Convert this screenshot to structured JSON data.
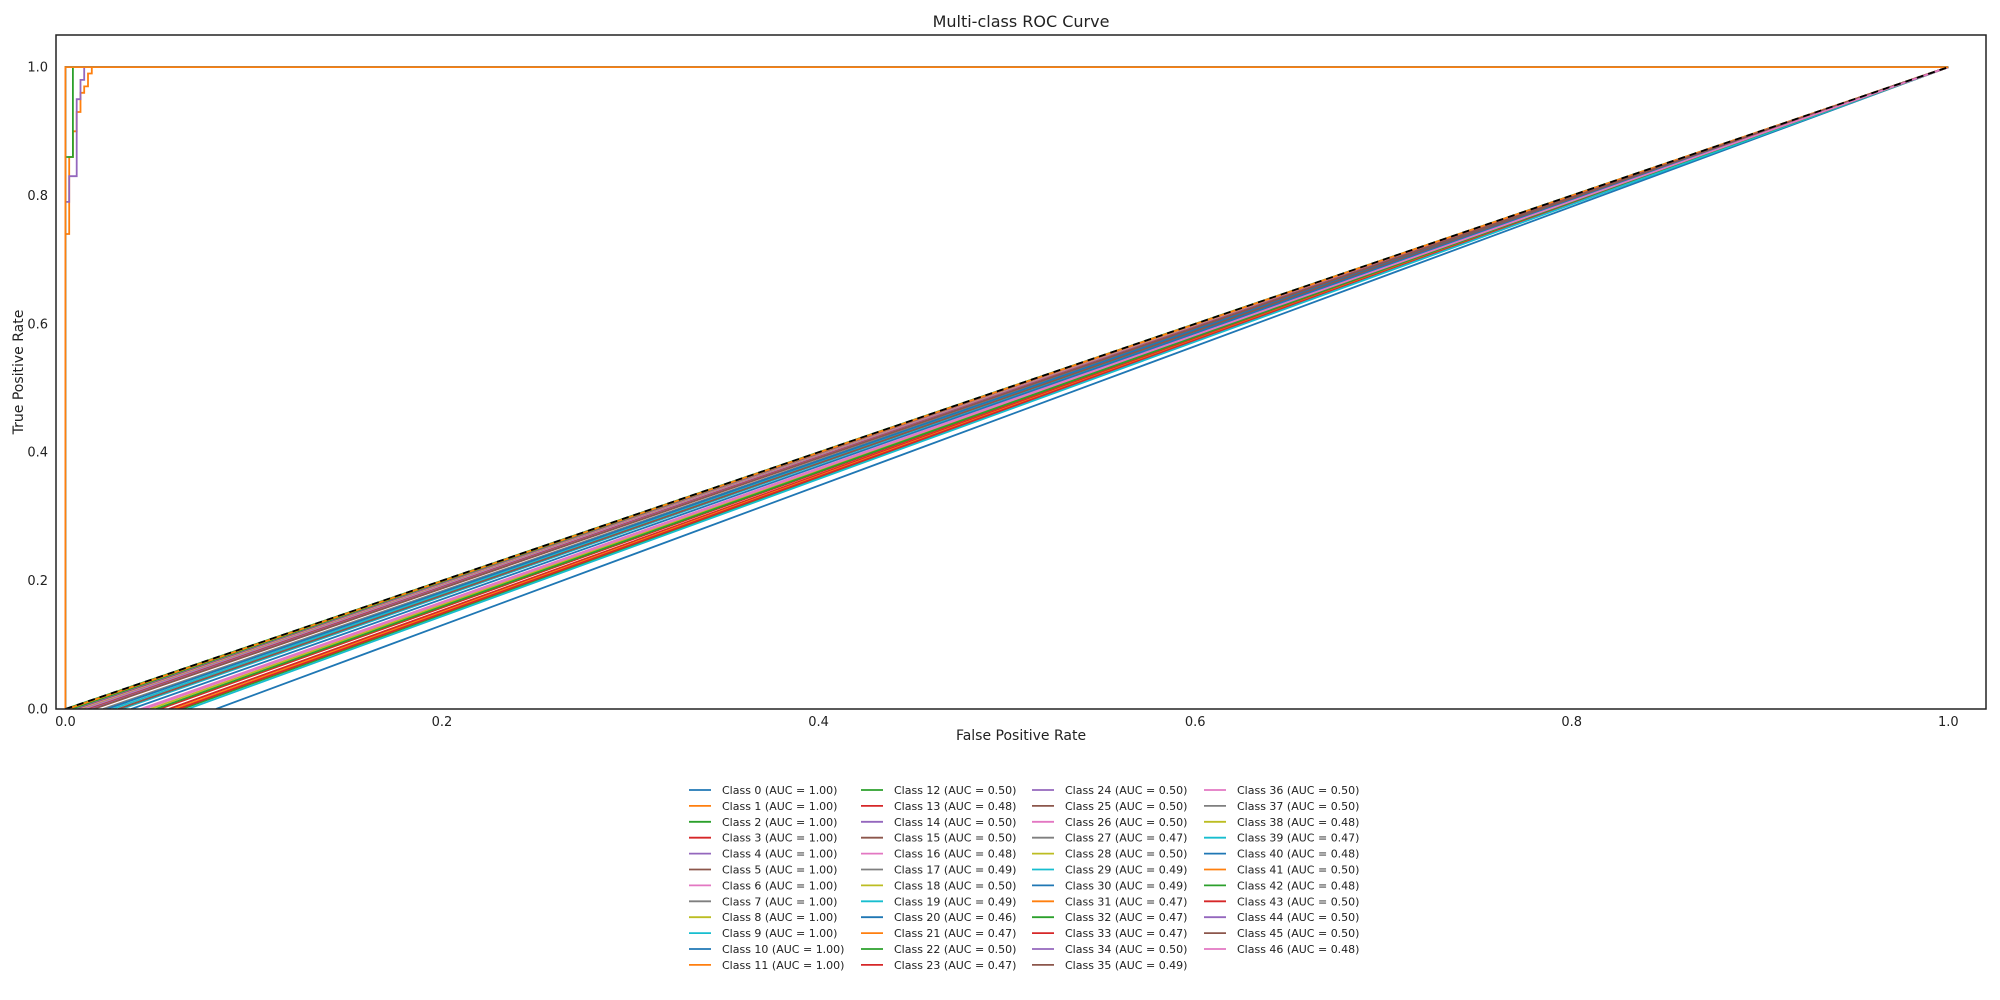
{
  "chart_data": {
    "type": "line",
    "title": "Multi-class ROC Curve",
    "xlabel": "False Positive Rate",
    "ylabel": "True Positive Rate",
    "xlim": [
      -0.005,
      1.02
    ],
    "ylim": [
      0.0,
      1.05
    ],
    "grid": false,
    "legend_position": "lower center (below plot), 4 columns",
    "x_ticks": [
      "0.0",
      "0.2",
      "0.4",
      "0.6",
      "0.8",
      "1.0"
    ],
    "y_ticks": [
      "0.0",
      "0.2",
      "0.4",
      "0.6",
      "0.8",
      "1.0"
    ],
    "chance_line": {
      "x": [
        0,
        1
      ],
      "y": [
        0,
        1
      ],
      "color": "#000000",
      "style": "dashed"
    },
    "series": [
      {
        "name": "Class 0 (AUC = 1.00)",
        "color": "#1f77b4",
        "x": [
          0,
          0,
          1
        ],
        "y": [
          0,
          1,
          1
        ]
      },
      {
        "name": "Class 1 (AUC = 1.00)",
        "color": "#ff7f0e",
        "x": [
          0,
          0,
          0.002,
          0.002,
          0.004,
          0.004,
          0.006,
          0.006,
          0.008,
          0.008,
          0.01,
          0.01,
          0.012,
          0.012,
          0.014,
          0.014,
          1
        ],
        "y": [
          0,
          0.74,
          0.74,
          0.86,
          0.86,
          0.9,
          0.9,
          0.93,
          0.93,
          0.96,
          0.96,
          0.97,
          0.97,
          0.99,
          0.99,
          1.0,
          1.0
        ]
      },
      {
        "name": "Class 2 (AUC = 1.00)",
        "color": "#2ca02c",
        "x": [
          0,
          0,
          0.004,
          0.004,
          1
        ],
        "y": [
          0,
          0.86,
          0.86,
          1,
          1
        ]
      },
      {
        "name": "Class 3 (AUC = 1.00)",
        "color": "#d62728",
        "x": [
          0,
          0,
          1
        ],
        "y": [
          0,
          1,
          1
        ]
      },
      {
        "name": "Class 4 (AUC = 1.00)",
        "color": "#9467bd",
        "x": [
          0,
          0,
          0.002,
          0.002,
          0.006,
          0.006,
          0.008,
          0.008,
          0.01,
          0.01,
          1
        ],
        "y": [
          0,
          0.79,
          0.79,
          0.83,
          0.83,
          0.95,
          0.95,
          0.98,
          0.98,
          1.0,
          1.0
        ]
      },
      {
        "name": "Class 5 (AUC = 1.00)",
        "color": "#8c564b",
        "x": [
          0,
          0,
          1
        ],
        "y": [
          0,
          1,
          1
        ]
      },
      {
        "name": "Class 6 (AUC = 1.00)",
        "color": "#e377c2",
        "x": [
          0,
          0,
          1
        ],
        "y": [
          0,
          1,
          1
        ]
      },
      {
        "name": "Class 7 (AUC = 1.00)",
        "color": "#7f7f7f",
        "x": [
          0,
          0,
          1
        ],
        "y": [
          0,
          1,
          1
        ]
      },
      {
        "name": "Class 8 (AUC = 1.00)",
        "color": "#bcbd22",
        "x": [
          0,
          0,
          1
        ],
        "y": [
          0,
          1,
          1
        ]
      },
      {
        "name": "Class 9 (AUC = 1.00)",
        "color": "#17becf",
        "x": [
          0,
          0,
          1
        ],
        "y": [
          0,
          1,
          1
        ]
      },
      {
        "name": "Class 10 (AUC = 1.00)",
        "color": "#1f77b4",
        "x": [
          0,
          0,
          0.012,
          0.012,
          1
        ],
        "y": [
          0,
          1,
          1,
          1,
          1
        ]
      },
      {
        "name": "Class 11 (AUC = 1.00)",
        "color": "#ff7f0e",
        "x": [
          0,
          0,
          1
        ],
        "y": [
          0,
          1,
          1
        ]
      },
      {
        "name": "Class 12 (AUC = 0.50)",
        "color": "#2ca02c",
        "x": [
          0.0,
          1
        ],
        "y": [
          0,
          1
        ]
      },
      {
        "name": "Class 13 (AUC = 0.48)",
        "color": "#d62728",
        "x": [
          0.05,
          1
        ],
        "y": [
          0,
          1
        ]
      },
      {
        "name": "Class 14 (AUC = 0.50)",
        "color": "#9467bd",
        "x": [
          0.002,
          1
        ],
        "y": [
          0,
          1
        ]
      },
      {
        "name": "Class 15 (AUC = 0.50)",
        "color": "#8c564b",
        "x": [
          0.005,
          1
        ],
        "y": [
          0,
          1
        ]
      },
      {
        "name": "Class 16 (AUC = 0.48)",
        "color": "#e377c2",
        "x": [
          0.04,
          1
        ],
        "y": [
          0,
          1
        ]
      },
      {
        "name": "Class 17 (AUC = 0.49)",
        "color": "#7f7f7f",
        "x": [
          0.02,
          1
        ],
        "y": [
          0,
          1
        ]
      },
      {
        "name": "Class 18 (AUC = 0.50)",
        "color": "#bcbd22",
        "x": [
          0.003,
          1
        ],
        "y": [
          0,
          1
        ]
      },
      {
        "name": "Class 19 (AUC = 0.49)",
        "color": "#17becf",
        "x": [
          0.025,
          1
        ],
        "y": [
          0,
          1
        ]
      },
      {
        "name": "Class 20 (AUC = 0.46)",
        "color": "#1f77b4",
        "x": [
          0.08,
          1
        ],
        "y": [
          0,
          1
        ]
      },
      {
        "name": "Class 21 (AUC = 0.47)",
        "color": "#ff7f0e",
        "x": [
          0.055,
          1
        ],
        "y": [
          0,
          1
        ]
      },
      {
        "name": "Class 22 (AUC = 0.50)",
        "color": "#2ca02c",
        "x": [
          0.004,
          1
        ],
        "y": [
          0,
          1
        ]
      },
      {
        "name": "Class 23 (AUC = 0.47)",
        "color": "#d62728",
        "x": [
          0.055,
          1
        ],
        "y": [
          0,
          1
        ]
      },
      {
        "name": "Class 24 (AUC = 0.50)",
        "color": "#9467bd",
        "x": [
          0.006,
          1
        ],
        "y": [
          0,
          1
        ]
      },
      {
        "name": "Class 25 (AUC = 0.50)",
        "color": "#8c564b",
        "x": [
          0.007,
          1
        ],
        "y": [
          0,
          1
        ]
      },
      {
        "name": "Class 26 (AUC = 0.50)",
        "color": "#e377c2",
        "x": [
          0.008,
          1
        ],
        "y": [
          0,
          1
        ]
      },
      {
        "name": "Class 27 (AUC = 0.47)",
        "color": "#7f7f7f",
        "x": [
          0.06,
          1
        ],
        "y": [
          0,
          1
        ]
      },
      {
        "name": "Class 28 (AUC = 0.50)",
        "color": "#bcbd22",
        "x": [
          0.009,
          1
        ],
        "y": [
          0,
          1
        ]
      },
      {
        "name": "Class 29 (AUC = 0.49)",
        "color": "#17becf",
        "x": [
          0.03,
          1
        ],
        "y": [
          0,
          1
        ]
      },
      {
        "name": "Class 30 (AUC = 0.49)",
        "color": "#1f77b4",
        "x": [
          0.022,
          1
        ],
        "y": [
          0,
          1
        ]
      },
      {
        "name": "Class 31 (AUC = 0.47)",
        "color": "#ff7f0e",
        "x": [
          0.058,
          1
        ],
        "y": [
          0,
          1
        ]
      },
      {
        "name": "Class 32 (AUC = 0.47)",
        "color": "#2ca02c",
        "x": [
          0.062,
          1
        ],
        "y": [
          0,
          1
        ]
      },
      {
        "name": "Class 33 (AUC = 0.47)",
        "color": "#d62728",
        "x": [
          0.06,
          1
        ],
        "y": [
          0,
          1
        ]
      },
      {
        "name": "Class 34 (AUC = 0.50)",
        "color": "#9467bd",
        "x": [
          0.01,
          1
        ],
        "y": [
          0,
          1
        ]
      },
      {
        "name": "Class 35 (AUC = 0.49)",
        "color": "#8c564b",
        "x": [
          0.028,
          1
        ],
        "y": [
          0,
          1
        ]
      },
      {
        "name": "Class 36 (AUC = 0.50)",
        "color": "#e377c2",
        "x": [
          0.011,
          1
        ],
        "y": [
          0,
          1
        ]
      },
      {
        "name": "Class 37 (AUC = 0.50)",
        "color": "#7f7f7f",
        "x": [
          0.012,
          1
        ],
        "y": [
          0,
          1
        ]
      },
      {
        "name": "Class 38 (AUC = 0.48)",
        "color": "#bcbd22",
        "x": [
          0.045,
          1
        ],
        "y": [
          0,
          1
        ]
      },
      {
        "name": "Class 39 (AUC = 0.47)",
        "color": "#17becf",
        "x": [
          0.065,
          1
        ],
        "y": [
          0,
          1
        ]
      },
      {
        "name": "Class 40 (AUC = 0.48)",
        "color": "#1f77b4",
        "x": [
          0.035,
          1
        ],
        "y": [
          0,
          1
        ]
      },
      {
        "name": "Class 41 (AUC = 0.50)",
        "color": "#ff7f0e",
        "x": [
          0.001,
          1
        ],
        "y": [
          0,
          1
        ]
      },
      {
        "name": "Class 42 (AUC = 0.48)",
        "color": "#2ca02c",
        "x": [
          0.048,
          1
        ],
        "y": [
          0,
          1
        ]
      },
      {
        "name": "Class 43 (AUC = 0.50)",
        "color": "#d62728",
        "x": [
          0.013,
          1
        ],
        "y": [
          0,
          1
        ]
      },
      {
        "name": "Class 44 (AUC = 0.50)",
        "color": "#9467bd",
        "x": [
          0.014,
          1
        ],
        "y": [
          0,
          1
        ]
      },
      {
        "name": "Class 45 (AUC = 0.50)",
        "color": "#8c564b",
        "x": [
          0.015,
          1
        ],
        "y": [
          0,
          1
        ]
      },
      {
        "name": "Class 46 (AUC = 0.48)",
        "color": "#e377c2",
        "x": [
          0.042,
          1
        ],
        "y": [
          0,
          1
        ]
      }
    ]
  }
}
